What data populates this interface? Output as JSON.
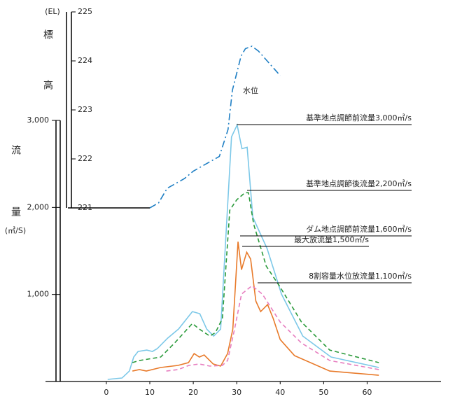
{
  "chart_data": {
    "type": "line",
    "y_label": "流量",
    "y_unit": "(㎥/S)",
    "y2_label": "標高",
    "y2_unit": "(EL)",
    "level_label": "水位",
    "xlim": [
      -14,
      77
    ],
    "xticks": [
      0,
      10,
      20,
      30,
      40,
      50,
      60
    ],
    "ylim": [
      0,
      3000
    ],
    "yticks": [
      {
        "value": 1000,
        "label": "1,000"
      },
      {
        "value": 2000,
        "label": "2,000"
      },
      {
        "value": 3000,
        "label": "3,000"
      }
    ],
    "y2lim": [
      221,
      225
    ],
    "y2ticks": [
      221,
      222,
      223,
      224,
      225
    ],
    "series": [
      {
        "color": "#1f7fc4",
        "style": "dashdot",
        "axis": "y2",
        "x": [
          10,
          12,
          14,
          18,
          20,
          22,
          25,
          26,
          28,
          29,
          30,
          31,
          32,
          33.5,
          35,
          37,
          40
        ],
        "values": [
          221,
          221.1,
          221.4,
          221.6,
          221.75,
          221.85,
          222,
          222.05,
          222.6,
          223.4,
          223.75,
          224.1,
          224.25,
          224.3,
          224.2,
          224,
          223.7
        ]
      },
      {
        "color": "#7cc8e8",
        "style": "solid",
        "x": [
          0.3,
          3.6,
          5.3,
          6.3,
          7.3,
          9.3,
          10.6,
          11.7,
          14.1,
          16.6,
          19.8,
          21.5,
          23.1,
          24.7,
          26.3,
          28.8,
          30.1,
          31.2,
          32.4,
          33.7,
          37,
          40.3,
          45.2,
          51.7,
          62.7
        ],
        "values": [
          24,
          40,
          120,
          281,
          345,
          361,
          345,
          377,
          498,
          602,
          803,
          779,
          602,
          522,
          602,
          2811,
          2948,
          2675,
          2691,
          1888,
          1526,
          1004,
          522,
          281,
          161
        ]
      },
      {
        "color": "#2a9a3a",
        "style": "dashed",
        "x": [
          6,
          7.6,
          12.5,
          15.7,
          19.8,
          21.4,
          23.8,
          25.1,
          26.7,
          28.4,
          30,
          31.9,
          32.7,
          33.9,
          36.8,
          40,
          44.9,
          51.4,
          62.7
        ],
        "values": [
          217,
          241,
          281,
          442,
          667,
          602,
          522,
          562,
          723,
          1968,
          2088,
          2169,
          2169,
          1807,
          1325,
          1084,
          683,
          361,
          217
        ]
      },
      {
        "color": "#e87a2a",
        "style": "solid",
        "x": [
          6,
          7.6,
          9.2,
          12.5,
          16.5,
          18.9,
          20.2,
          21.4,
          22.5,
          24.6,
          26.3,
          27.9,
          29.1,
          30.3,
          31.1,
          32.3,
          33.2,
          34.4,
          35.5,
          37.1,
          38.4,
          40,
          43.3,
          51.4,
          62.7
        ],
        "values": [
          120,
          137,
          120,
          161,
          185,
          217,
          321,
          281,
          305,
          201,
          177,
          321,
          602,
          1606,
          1285,
          1486,
          1406,
          924,
          803,
          884,
          723,
          482,
          297,
          120,
          72
        ]
      },
      {
        "color": "#e77fc0",
        "style": "dashed",
        "x": [
          13.8,
          16.5,
          19,
          21.4,
          23.8,
          26.7,
          27.9,
          29.5,
          31.1,
          33.5,
          35.9,
          40,
          44.9,
          51.4,
          62.7
        ],
        "values": [
          120,
          137,
          185,
          201,
          177,
          185,
          241,
          602,
          1004,
          1100,
          1004,
          683,
          442,
          241,
          137
        ]
      }
    ],
    "annotations": [
      "基準地点調節前流量3,000㎥/s",
      "基準地点調節後流量2,200㎥/s",
      "ダム地点調節前流量1,600㎥/s",
      "最大放流量1,500㎥/s",
      "8割容量水位放流量1,100㎥/s"
    ]
  }
}
